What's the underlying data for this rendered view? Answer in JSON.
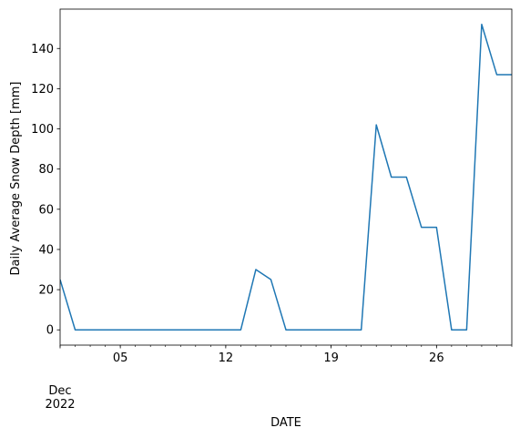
{
  "chart_data": {
    "type": "line",
    "xlabel": "DATE",
    "ylabel": "Daily Average Snow Depth [mm]",
    "x": [
      "2022-12-01",
      "2022-12-02",
      "2022-12-03",
      "2022-12-04",
      "2022-12-05",
      "2022-12-06",
      "2022-12-07",
      "2022-12-08",
      "2022-12-09",
      "2022-12-10",
      "2022-12-11",
      "2022-12-12",
      "2022-12-13",
      "2022-12-14",
      "2022-12-15",
      "2022-12-16",
      "2022-12-17",
      "2022-12-18",
      "2022-12-19",
      "2022-12-20",
      "2022-12-21",
      "2022-12-22",
      "2022-12-23",
      "2022-12-24",
      "2022-12-25",
      "2022-12-26",
      "2022-12-27",
      "2022-12-28",
      "2022-12-29",
      "2022-12-30",
      "2022-12-31"
    ],
    "series": [
      {
        "values": [
          25,
          0,
          0,
          0,
          0,
          0,
          0,
          0,
          0,
          0,
          0,
          0,
          0,
          30,
          25,
          0,
          0,
          0,
          0,
          0,
          0,
          102,
          76,
          76,
          51,
          51,
          0,
          0,
          152,
          127,
          127
        ],
        "color": "#1f77b4"
      }
    ],
    "xlim": [
      "2022-12-01",
      "2022-12-31"
    ],
    "ylim": [
      -7.6,
      159.6
    ],
    "yticks": [
      0,
      20,
      40,
      60,
      80,
      100,
      120,
      140
    ],
    "xticks": [
      {
        "date": "2022-12-05",
        "label": "05"
      },
      {
        "date": "2022-12-12",
        "label": "12"
      },
      {
        "date": "2022-12-19",
        "label": "19"
      },
      {
        "date": "2022-12-26",
        "label": "26"
      }
    ],
    "x_offset_label": [
      "Dec",
      "2022"
    ],
    "grid": false,
    "legend": false
  }
}
